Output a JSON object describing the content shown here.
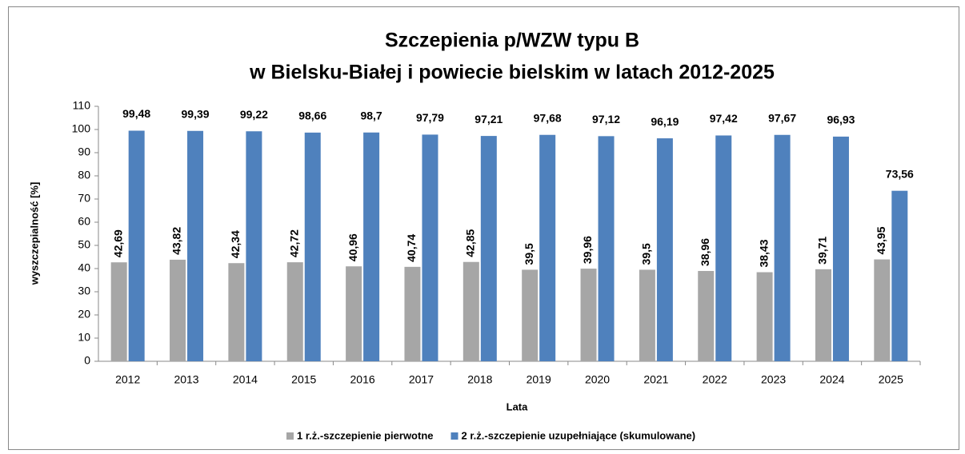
{
  "chart_data": {
    "type": "bar",
    "title": [
      "Szczepienia p/WZW typu B",
      "w Bielsku-Białej i powiecie bielskim w latach 2012-2025"
    ],
    "x_label": "Lata",
    "y_label": "wyszczepialność [%]",
    "categories": [
      "2012",
      "2013",
      "2014",
      "2015",
      "2016",
      "2017",
      "2018",
      "2019",
      "2020",
      "2021",
      "2022",
      "2023",
      "2024",
      "2025"
    ],
    "series": [
      {
        "name": "1 r.ż.-szczepienie pierwotne",
        "color": "#a6a6a6",
        "values": [
          42.69,
          43.82,
          42.34,
          42.72,
          40.96,
          40.74,
          42.85,
          39.5,
          39.96,
          39.5,
          38.96,
          38.43,
          39.71,
          43.95
        ],
        "value_labels": [
          "42,69",
          "43,82",
          "42,34",
          "42,72",
          "40,96",
          "40,74",
          "42,85",
          "39,5",
          "39,96",
          "39,5",
          "38,96",
          "38,43",
          "39,71",
          "43,95"
        ]
      },
      {
        "name": "2 r.ż.-szczepienie uzupełniające (skumulowane)",
        "color": "#4f81bd",
        "values": [
          99.48,
          99.39,
          99.22,
          98.66,
          98.7,
          97.79,
          97.21,
          97.68,
          97.12,
          96.19,
          97.42,
          97.67,
          96.93,
          73.56
        ],
        "value_labels": [
          "99,48",
          "99,39",
          "99,22",
          "98,66",
          "98,7",
          "97,79",
          "97,21",
          "97,68",
          "97,12",
          "96,19",
          "97,42",
          "97,67",
          "96,93",
          "73,56"
        ]
      }
    ],
    "ylim": [
      0,
      110
    ],
    "yticks": [
      0,
      10,
      20,
      30,
      40,
      50,
      60,
      70,
      80,
      90,
      100,
      110
    ],
    "legend": "bottom"
  }
}
